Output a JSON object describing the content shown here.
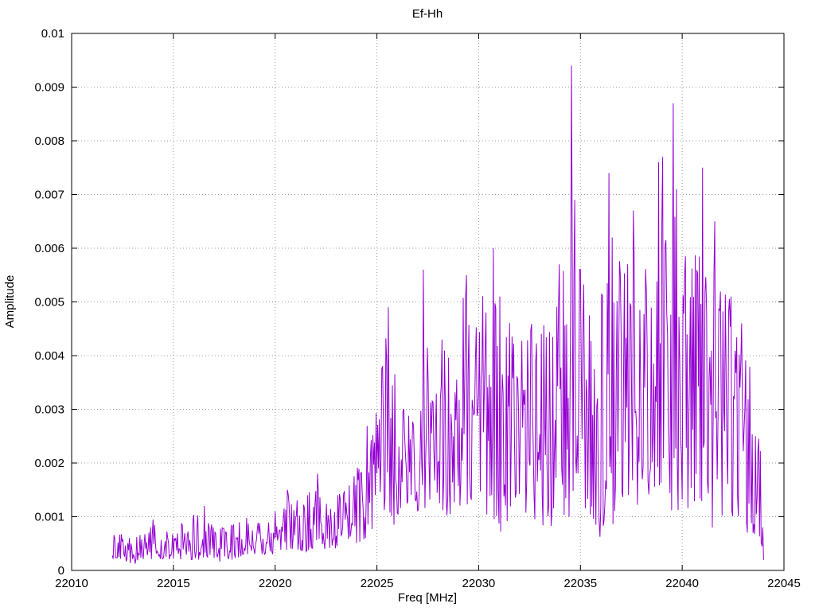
{
  "chart_data": {
    "type": "line",
    "title": "Ef-Hh",
    "xlabel": "Freq [MHz]",
    "ylabel": "Amplitude",
    "xlim": [
      22010,
      22045
    ],
    "ylim": [
      0,
      0.01
    ],
    "grid": "dotted",
    "legend": "none",
    "line_color": "#9400d3",
    "grid_color": "#9a9a9a",
    "border_color": "#000000",
    "x_ticks": [
      {
        "v": 22010,
        "label": "22010"
      },
      {
        "v": 22015,
        "label": "22015"
      },
      {
        "v": 22020,
        "label": "22020"
      },
      {
        "v": 22025,
        "label": "22025"
      },
      {
        "v": 22030,
        "label": "22030"
      },
      {
        "v": 22035,
        "label": "22035"
      },
      {
        "v": 22040,
        "label": "22040"
      },
      {
        "v": 22045,
        "label": "22045"
      }
    ],
    "y_ticks": [
      {
        "v": 0,
        "label": "0"
      },
      {
        "v": 0.001,
        "label": "0.001"
      },
      {
        "v": 0.002,
        "label": "0.002"
      },
      {
        "v": 0.003,
        "label": "0.003"
      },
      {
        "v": 0.004,
        "label": "0.004"
      },
      {
        "v": 0.005,
        "label": "0.005"
      },
      {
        "v": 0.006,
        "label": "0.006"
      },
      {
        "v": 0.007,
        "label": "0.007"
      },
      {
        "v": 0.008,
        "label": "0.008"
      },
      {
        "v": 0.009,
        "label": "0.009"
      },
      {
        "v": 0.01,
        "label": "0.01"
      }
    ],
    "x_start": 22012.0,
    "x_end": 22044.0,
    "sample_step": 0.04,
    "envelope": [
      [
        22012.0,
        0.0002,
        0.0007
      ],
      [
        22012.5,
        0.0002,
        0.0007
      ],
      [
        22013.0,
        0.0001,
        0.0006
      ],
      [
        22013.5,
        0.0002,
        0.0007
      ],
      [
        22014.0,
        0.0002,
        0.00095
      ],
      [
        22014.5,
        0.0002,
        0.0007
      ],
      [
        22015.0,
        0.0002,
        0.0008
      ],
      [
        22015.5,
        0.0002,
        0.0009
      ],
      [
        22016.0,
        0.0002,
        0.0011
      ],
      [
        22016.5,
        0.0002,
        0.0012
      ],
      [
        22017.0,
        0.0001,
        0.0008
      ],
      [
        22017.5,
        0.0002,
        0.0008
      ],
      [
        22018.0,
        0.0002,
        0.0009
      ],
      [
        22018.5,
        0.0003,
        0.001
      ],
      [
        22019.0,
        0.0003,
        0.0009
      ],
      [
        22019.5,
        0.0003,
        0.001
      ],
      [
        22020.0,
        0.0003,
        0.0011
      ],
      [
        22020.5,
        0.0003,
        0.0015
      ],
      [
        22021.0,
        0.0004,
        0.0013
      ],
      [
        22021.5,
        0.0003,
        0.0014
      ],
      [
        22022.0,
        0.0004,
        0.0018
      ],
      [
        22022.5,
        0.0004,
        0.0013
      ],
      [
        22023.0,
        0.0004,
        0.0015
      ],
      [
        22023.5,
        0.0005,
        0.0016
      ],
      [
        22024.0,
        0.0005,
        0.0022
      ],
      [
        22024.5,
        0.0006,
        0.0028
      ],
      [
        22025.0,
        0.0008,
        0.0035
      ],
      [
        22025.5,
        0.0008,
        0.0045
      ],
      [
        22026.0,
        0.0008,
        0.0038
      ],
      [
        22026.5,
        0.001,
        0.0032
      ],
      [
        22027.0,
        0.001,
        0.004
      ],
      [
        22027.5,
        0.0012,
        0.0048
      ],
      [
        22028.0,
        0.001,
        0.0042
      ],
      [
        22028.5,
        0.001,
        0.0045
      ],
      [
        22029.0,
        0.0012,
        0.005
      ],
      [
        22029.5,
        0.001,
        0.0052
      ],
      [
        22030.0,
        0.0012,
        0.005
      ],
      [
        22030.5,
        0.001,
        0.0055
      ],
      [
        22031.0,
        0.0006,
        0.005
      ],
      [
        22031.5,
        0.001,
        0.0047
      ],
      [
        22032.0,
        0.0012,
        0.0046
      ],
      [
        22032.5,
        0.001,
        0.0047
      ],
      [
        22033.0,
        0.0008,
        0.0046
      ],
      [
        22033.5,
        0.0008,
        0.005
      ],
      [
        22034.0,
        0.001,
        0.0055
      ],
      [
        22034.5,
        0.001,
        0.006
      ],
      [
        22035.0,
        0.0008,
        0.0056
      ],
      [
        22035.5,
        0.0008,
        0.0048
      ],
      [
        22036.0,
        0.0006,
        0.0055
      ],
      [
        22036.5,
        0.0008,
        0.006
      ],
      [
        22037.0,
        0.0008,
        0.0058
      ],
      [
        22037.5,
        0.001,
        0.006
      ],
      [
        22038.0,
        0.0012,
        0.0062
      ],
      [
        22038.5,
        0.0015,
        0.0055
      ],
      [
        22039.0,
        0.001,
        0.0065
      ],
      [
        22039.5,
        0.001,
        0.007
      ],
      [
        22040.0,
        0.0012,
        0.006
      ],
      [
        22040.5,
        0.001,
        0.0058
      ],
      [
        22041.0,
        0.0008,
        0.0062
      ],
      [
        22041.5,
        0.0008,
        0.006
      ],
      [
        22042.0,
        0.001,
        0.0052
      ],
      [
        22042.5,
        0.0008,
        0.0051
      ],
      [
        22043.0,
        0.0008,
        0.0042
      ],
      [
        22043.5,
        0.0005,
        0.0038
      ],
      [
        22044.0,
        0.0001,
        0.0015
      ]
    ],
    "peaks": [
      [
        22014.0,
        0.00095
      ],
      [
        22016.5,
        0.0012
      ],
      [
        22020.6,
        0.0015
      ],
      [
        22021.6,
        0.0014
      ],
      [
        22022.1,
        0.0018
      ],
      [
        22025.55,
        0.0049
      ],
      [
        22027.3,
        0.0056
      ],
      [
        22029.4,
        0.0055
      ],
      [
        22030.7,
        0.006
      ],
      [
        22031.05,
        0.0051
      ],
      [
        22033.95,
        0.0057
      ],
      [
        22034.55,
        0.0094
      ],
      [
        22034.7,
        0.0069
      ],
      [
        22035.0,
        0.0056
      ],
      [
        22036.4,
        0.0074
      ],
      [
        22036.55,
        0.0062
      ],
      [
        22037.6,
        0.0067
      ],
      [
        22038.85,
        0.0076
      ],
      [
        22039.05,
        0.0077
      ],
      [
        22039.55,
        0.0087
      ],
      [
        22039.7,
        0.0071
      ],
      [
        22041.0,
        0.0075
      ],
      [
        22041.6,
        0.0065
      ],
      [
        22042.4,
        0.0051
      ],
      [
        22042.9,
        0.0046
      ]
    ]
  }
}
